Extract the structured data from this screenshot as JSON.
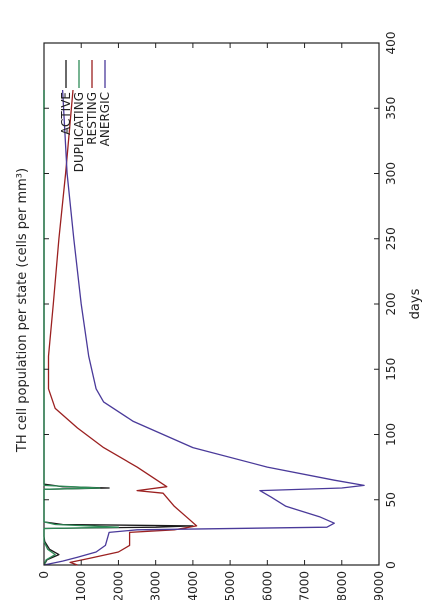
{
  "chart_data": {
    "type": "line",
    "orientation": "rotated-90-ccw",
    "xlabel": "days",
    "ylabel": "TH cell population per state (cells per mm³)",
    "xlim": [
      0,
      400
    ],
    "ylim": [
      0,
      9000
    ],
    "x_ticks": [
      0,
      50,
      100,
      150,
      200,
      250,
      300,
      350,
      400
    ],
    "y_ticks": [
      0,
      1000,
      2000,
      3000,
      4000,
      5000,
      6000,
      7000,
      8000,
      9000
    ],
    "grid": false,
    "legend_position": "top-right",
    "series": [
      {
        "name": "ACTIVE",
        "color": "#1a1a1a",
        "points": [
          [
            0,
            0
          ],
          [
            4,
            80
          ],
          [
            8,
            400
          ],
          [
            12,
            150
          ],
          [
            18,
            20
          ],
          [
            22,
            0
          ],
          [
            28,
            0
          ],
          [
            29,
            3000
          ],
          [
            30,
            4000
          ],
          [
            31,
            500
          ],
          [
            33,
            0
          ],
          [
            58,
            0
          ],
          [
            59,
            1750
          ],
          [
            60,
            500
          ],
          [
            62,
            0
          ],
          [
            120,
            0
          ],
          [
            364,
            0
          ]
        ]
      },
      {
        "name": "DUPLICATING",
        "color": "#2e8b57",
        "points": [
          [
            0,
            0
          ],
          [
            4,
            60
          ],
          [
            8,
            300
          ],
          [
            12,
            100
          ],
          [
            18,
            0
          ],
          [
            28,
            0
          ],
          [
            29,
            2000
          ],
          [
            31,
            300
          ],
          [
            33,
            0
          ],
          [
            58,
            0
          ],
          [
            59,
            1500
          ],
          [
            61,
            0
          ],
          [
            364,
            0
          ]
        ]
      },
      {
        "name": "RESTING",
        "color": "#9b2020",
        "points": [
          [
            0,
            900
          ],
          [
            2,
            700
          ],
          [
            5,
            1200
          ],
          [
            10,
            2000
          ],
          [
            15,
            2300
          ],
          [
            25,
            2300
          ],
          [
            27,
            3500
          ],
          [
            30,
            4100
          ],
          [
            35,
            3900
          ],
          [
            45,
            3500
          ],
          [
            55,
            3200
          ],
          [
            57,
            2500
          ],
          [
            60,
            3300
          ],
          [
            75,
            2500
          ],
          [
            90,
            1600
          ],
          [
            105,
            900
          ],
          [
            120,
            300
          ],
          [
            135,
            120
          ],
          [
            160,
            120
          ],
          [
            200,
            250
          ],
          [
            250,
            400
          ],
          [
            300,
            580
          ],
          [
            364,
            780
          ]
        ]
      },
      {
        "name": "ANERGIC",
        "color": "#4a3a9a",
        "points": [
          [
            0,
            0
          ],
          [
            3,
            500
          ],
          [
            6,
            900
          ],
          [
            10,
            1400
          ],
          [
            15,
            1650
          ],
          [
            25,
            1750
          ],
          [
            27,
            2500
          ],
          [
            29,
            7600
          ],
          [
            32,
            7800
          ],
          [
            37,
            7400
          ],
          [
            45,
            6500
          ],
          [
            52,
            6100
          ],
          [
            57,
            5800
          ],
          [
            59,
            8000
          ],
          [
            61,
            8600
          ],
          [
            65,
            7800
          ],
          [
            75,
            6000
          ],
          [
            90,
            4000
          ],
          [
            110,
            2400
          ],
          [
            125,
            1600
          ],
          [
            135,
            1400
          ],
          [
            160,
            1200
          ],
          [
            200,
            1000
          ],
          [
            250,
            800
          ],
          [
            300,
            620
          ],
          [
            364,
            500
          ]
        ]
      }
    ]
  }
}
